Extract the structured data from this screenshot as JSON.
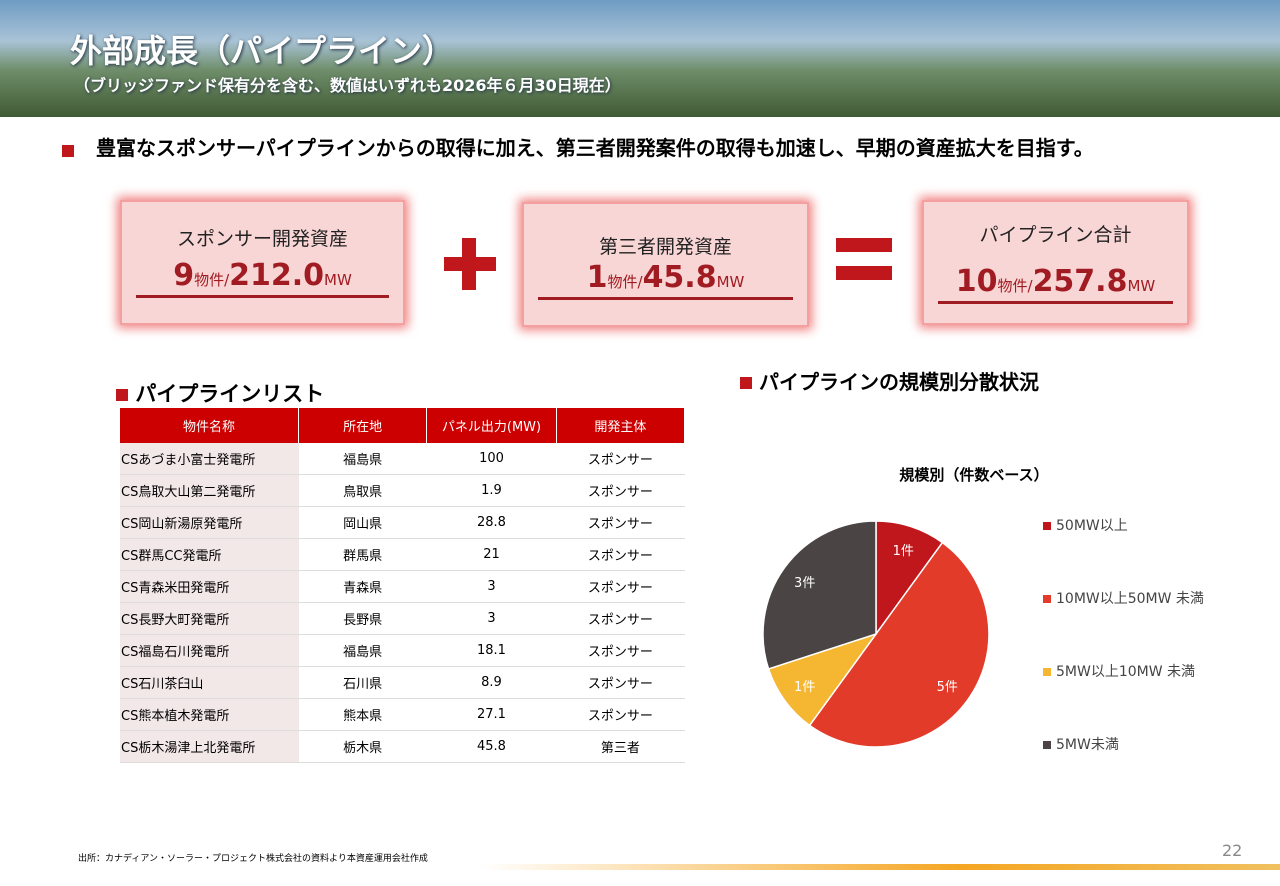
{
  "header": {
    "title": "外部成長（パイプライン）",
    "subtitle": "（ブリッジファンド保有分を含む、数値はいずれも2026年６月30日現在）"
  },
  "bullet": "豊富なスポンサーパイプラインからの取得に加え、第三者開発案件の取得も加速し、早期の資産拡大を目指す。",
  "summary": {
    "boxes": [
      {
        "label": "スポンサー開発資産",
        "count": "9",
        "count_unit": "物件/",
        "capacity": "212.0",
        "capacity_unit": "MW"
      },
      {
        "label": "第三者開発資産",
        "count": "1",
        "count_unit": "物件/",
        "capacity": "45.8",
        "capacity_unit": "MW"
      },
      {
        "label": "パイプライン合計",
        "count": "10",
        "count_unit": "物件/",
        "capacity": "257.8",
        "capacity_unit": "MW"
      }
    ]
  },
  "table": {
    "title": "パイプラインリスト",
    "columns": [
      "物件名称",
      "所在地",
      "パネル出力(MW)",
      "開発主体"
    ],
    "rows": [
      [
        "CSあづま小富士発電所",
        "福島県",
        "100",
        "スポンサー"
      ],
      [
        "CS鳥取大山第二発電所",
        "鳥取県",
        "1.9",
        "スポンサー"
      ],
      [
        "CS岡山新湯原発電所",
        "岡山県",
        "28.8",
        "スポンサー"
      ],
      [
        "CS群馬CC発電所",
        "群馬県",
        "21",
        "スポンサー"
      ],
      [
        "CS青森米田発電所",
        "青森県",
        "3",
        "スポンサー"
      ],
      [
        "CS長野大町発電所",
        "長野県",
        "3",
        "スポンサー"
      ],
      [
        "CS福島石川発電所",
        "福島県",
        "18.1",
        "スポンサー"
      ],
      [
        "CS石川茶臼山",
        "石川県",
        "8.9",
        "スポンサー"
      ],
      [
        "CS熊本植木発電所",
        "熊本県",
        "27.1",
        "スポンサー"
      ],
      [
        "CS栃木湯津上北発電所",
        "栃木県",
        "45.8",
        "第三者"
      ]
    ]
  },
  "chart_data": {
    "type": "pie",
    "section_title": "パイプラインの規模別分散状況",
    "title": "規模別（件数ベース）",
    "categories": [
      "50MW以上",
      "10MW以上50MW 未満",
      "5MW以上10MW 未満",
      "5MW未満"
    ],
    "values": [
      1,
      5,
      1,
      3
    ],
    "value_labels": [
      "1件",
      "5件",
      "1件",
      "3件"
    ],
    "colors": [
      "#c0171d",
      "#e23b2a",
      "#f5b731",
      "#4a4444"
    ]
  },
  "footnote": "出所：カナディアン・ソーラー・プロジェクト株式会社の資料より本資産運用会社作成",
  "page_number": "22"
}
